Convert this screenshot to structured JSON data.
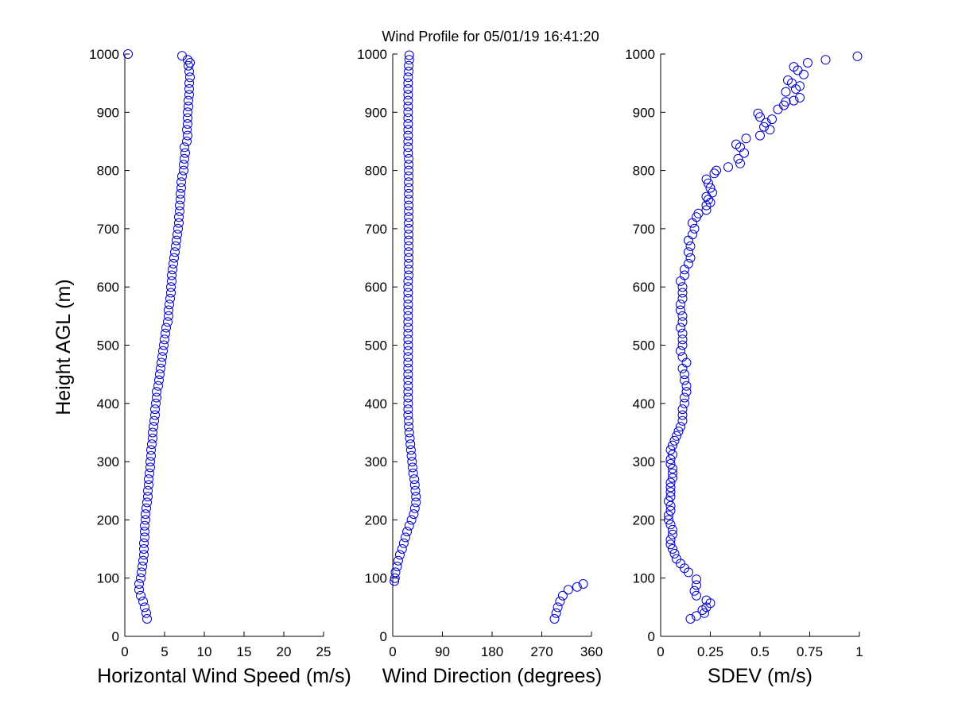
{
  "figure_title": "Wind Profile for  05/01/19 16:41:20",
  "marker_color": "#0000cc",
  "chart_data": [
    {
      "type": "scatter",
      "xlabel": "Horizontal Wind Speed (m/s)",
      "ylabel": "Height AGL (m)",
      "xlim": [
        0,
        25
      ],
      "ylim": [
        0,
        1000
      ],
      "xticks": [
        0,
        5,
        10,
        15,
        20,
        25
      ],
      "yticks": [
        0,
        100,
        200,
        300,
        400,
        500,
        600,
        700,
        800,
        900,
        1000
      ],
      "grid": false,
      "points": [
        [
          2.8,
          30
        ],
        [
          2.7,
          40
        ],
        [
          2.5,
          50
        ],
        [
          2.3,
          60
        ],
        [
          2.0,
          70
        ],
        [
          1.8,
          80
        ],
        [
          1.8,
          90
        ],
        [
          2.0,
          100
        ],
        [
          2.1,
          110
        ],
        [
          2.2,
          120
        ],
        [
          2.3,
          130
        ],
        [
          2.4,
          140
        ],
        [
          2.4,
          150
        ],
        [
          2.4,
          160
        ],
        [
          2.5,
          170
        ],
        [
          2.5,
          180
        ],
        [
          2.5,
          190
        ],
        [
          2.6,
          200
        ],
        [
          2.6,
          210
        ],
        [
          2.7,
          220
        ],
        [
          2.8,
          230
        ],
        [
          2.9,
          240
        ],
        [
          2.9,
          250
        ],
        [
          3.0,
          260
        ],
        [
          3.0,
          270
        ],
        [
          3.1,
          280
        ],
        [
          3.2,
          290
        ],
        [
          3.2,
          300
        ],
        [
          3.3,
          310
        ],
        [
          3.3,
          320
        ],
        [
          3.4,
          330
        ],
        [
          3.5,
          340
        ],
        [
          3.5,
          350
        ],
        [
          3.6,
          360
        ],
        [
          3.7,
          370
        ],
        [
          3.8,
          380
        ],
        [
          3.8,
          390
        ],
        [
          3.9,
          400
        ],
        [
          4.0,
          410
        ],
        [
          4.0,
          420
        ],
        [
          4.2,
          430
        ],
        [
          4.3,
          440
        ],
        [
          4.4,
          450
        ],
        [
          4.5,
          460
        ],
        [
          4.6,
          470
        ],
        [
          4.7,
          480
        ],
        [
          4.8,
          490
        ],
        [
          4.9,
          500
        ],
        [
          5.0,
          510
        ],
        [
          5.1,
          520
        ],
        [
          5.2,
          530
        ],
        [
          5.4,
          540
        ],
        [
          5.5,
          550
        ],
        [
          5.5,
          560
        ],
        [
          5.6,
          570
        ],
        [
          5.7,
          580
        ],
        [
          5.8,
          590
        ],
        [
          5.8,
          600
        ],
        [
          5.9,
          610
        ],
        [
          5.9,
          620
        ],
        [
          6.0,
          630
        ],
        [
          6.1,
          640
        ],
        [
          6.2,
          650
        ],
        [
          6.3,
          660
        ],
        [
          6.4,
          670
        ],
        [
          6.5,
          680
        ],
        [
          6.6,
          690
        ],
        [
          6.7,
          700
        ],
        [
          6.8,
          710
        ],
        [
          6.8,
          720
        ],
        [
          6.9,
          730
        ],
        [
          6.9,
          740
        ],
        [
          7.0,
          750
        ],
        [
          7.0,
          760
        ],
        [
          7.1,
          770
        ],
        [
          7.1,
          780
        ],
        [
          7.2,
          790
        ],
        [
          7.4,
          800
        ],
        [
          7.4,
          810
        ],
        [
          7.5,
          820
        ],
        [
          7.6,
          830
        ],
        [
          7.5,
          840
        ],
        [
          7.8,
          850
        ],
        [
          7.9,
          860
        ],
        [
          7.8,
          870
        ],
        [
          7.9,
          880
        ],
        [
          7.9,
          890
        ],
        [
          7.9,
          900
        ],
        [
          8.0,
          910
        ],
        [
          8.0,
          920
        ],
        [
          8.1,
          930
        ],
        [
          8.1,
          940
        ],
        [
          8.1,
          950
        ],
        [
          8.2,
          960
        ],
        [
          8.1,
          970
        ],
        [
          8.0,
          980
        ],
        [
          8.2,
          985
        ],
        [
          7.9,
          990
        ],
        [
          7.2,
          997
        ],
        [
          0.4,
          1000
        ]
      ]
    },
    {
      "type": "scatter",
      "xlabel": "Wind Direction (degrees)",
      "xlim": [
        0,
        360
      ],
      "ylim": [
        0,
        1000
      ],
      "xticks": [
        0,
        90,
        180,
        270,
        360
      ],
      "yticks": [
        0,
        100,
        200,
        300,
        400,
        500,
        600,
        700,
        800,
        900,
        1000
      ],
      "grid": false,
      "points": [
        [
          293,
          30
        ],
        [
          296,
          40
        ],
        [
          299,
          50
        ],
        [
          303,
          60
        ],
        [
          308,
          70
        ],
        [
          318,
          80
        ],
        [
          334,
          85
        ],
        [
          345,
          90
        ],
        [
          3,
          95
        ],
        [
          4,
          100
        ],
        [
          5,
          110
        ],
        [
          8,
          120
        ],
        [
          10,
          130
        ],
        [
          13,
          140
        ],
        [
          17,
          150
        ],
        [
          20,
          160
        ],
        [
          23,
          170
        ],
        [
          26,
          180
        ],
        [
          30,
          190
        ],
        [
          34,
          200
        ],
        [
          38,
          210
        ],
        [
          40,
          220
        ],
        [
          42,
          230
        ],
        [
          42,
          240
        ],
        [
          41,
          250
        ],
        [
          40,
          260
        ],
        [
          39,
          270
        ],
        [
          37,
          280
        ],
        [
          36,
          290
        ],
        [
          35,
          300
        ],
        [
          34,
          310
        ],
        [
          33,
          320
        ],
        [
          32,
          330
        ],
        [
          31,
          340
        ],
        [
          30,
          350
        ],
        [
          29,
          360
        ],
        [
          29,
          370
        ],
        [
          28,
          380
        ],
        [
          28,
          390
        ],
        [
          28,
          400
        ],
        [
          28,
          410
        ],
        [
          28,
          420
        ],
        [
          28,
          430
        ],
        [
          28,
          440
        ],
        [
          28,
          450
        ],
        [
          28,
          460
        ],
        [
          28,
          470
        ],
        [
          28,
          480
        ],
        [
          28,
          490
        ],
        [
          28,
          500
        ],
        [
          28,
          510
        ],
        [
          28,
          520
        ],
        [
          28,
          530
        ],
        [
          28,
          540
        ],
        [
          28,
          550
        ],
        [
          28,
          560
        ],
        [
          28,
          570
        ],
        [
          28,
          580
        ],
        [
          28,
          590
        ],
        [
          28,
          600
        ],
        [
          28,
          610
        ],
        [
          29,
          620
        ],
        [
          29,
          630
        ],
        [
          29,
          640
        ],
        [
          29,
          650
        ],
        [
          29,
          660
        ],
        [
          29,
          670
        ],
        [
          29,
          680
        ],
        [
          29,
          690
        ],
        [
          29,
          700
        ],
        [
          29,
          710
        ],
        [
          29,
          720
        ],
        [
          29,
          730
        ],
        [
          29,
          740
        ],
        [
          29,
          750
        ],
        [
          29,
          760
        ],
        [
          29,
          770
        ],
        [
          29,
          780
        ],
        [
          29,
          790
        ],
        [
          29,
          800
        ],
        [
          29,
          810
        ],
        [
          29,
          820
        ],
        [
          28,
          830
        ],
        [
          28,
          840
        ],
        [
          28,
          850
        ],
        [
          28,
          860
        ],
        [
          28,
          870
        ],
        [
          28,
          880
        ],
        [
          28,
          890
        ],
        [
          28,
          900
        ],
        [
          28,
          910
        ],
        [
          28,
          920
        ],
        [
          28,
          930
        ],
        [
          28,
          940
        ],
        [
          28,
          950
        ],
        [
          28,
          960
        ],
        [
          29,
          970
        ],
        [
          29,
          980
        ],
        [
          30,
          990
        ],
        [
          30,
          998
        ]
      ]
    },
    {
      "type": "scatter",
      "xlabel": "SDEV  (m/s)",
      "xlim": [
        0,
        1
      ],
      "ylim": [
        0,
        1000
      ],
      "xticks": [
        "0",
        "0.25",
        "0.5",
        "0.75",
        "1"
      ],
      "yticks": [
        0,
        100,
        200,
        300,
        400,
        500,
        600,
        700,
        800,
        900,
        1000
      ],
      "grid": false,
      "points": [
        [
          0.15,
          30
        ],
        [
          0.18,
          35
        ],
        [
          0.22,
          40
        ],
        [
          0.21,
          45
        ],
        [
          0.23,
          50
        ],
        [
          0.25,
          57
        ],
        [
          0.23,
          62
        ],
        [
          0.18,
          70
        ],
        [
          0.17,
          78
        ],
        [
          0.18,
          88
        ],
        [
          0.18,
          98
        ],
        [
          0.14,
          110
        ],
        [
          0.12,
          117
        ],
        [
          0.1,
          125
        ],
        [
          0.08,
          133
        ],
        [
          0.07,
          142
        ],
        [
          0.06,
          150
        ],
        [
          0.05,
          158
        ],
        [
          0.05,
          166
        ],
        [
          0.06,
          175
        ],
        [
          0.06,
          183
        ],
        [
          0.05,
          192
        ],
        [
          0.04,
          200
        ],
        [
          0.04,
          208
        ],
        [
          0.05,
          216
        ],
        [
          0.05,
          224
        ],
        [
          0.04,
          232
        ],
        [
          0.05,
          240
        ],
        [
          0.05,
          248
        ],
        [
          0.05,
          256
        ],
        [
          0.05,
          264
        ],
        [
          0.06,
          272
        ],
        [
          0.06,
          280
        ],
        [
          0.06,
          288
        ],
        [
          0.05,
          296
        ],
        [
          0.05,
          304
        ],
        [
          0.06,
          312
        ],
        [
          0.05,
          320
        ],
        [
          0.06,
          328
        ],
        [
          0.07,
          336
        ],
        [
          0.08,
          344
        ],
        [
          0.09,
          352
        ],
        [
          0.1,
          360
        ],
        [
          0.11,
          370
        ],
        [
          0.11,
          380
        ],
        [
          0.11,
          390
        ],
        [
          0.12,
          400
        ],
        [
          0.12,
          410
        ],
        [
          0.13,
          420
        ],
        [
          0.13,
          430
        ],
        [
          0.12,
          440
        ],
        [
          0.12,
          450
        ],
        [
          0.11,
          460
        ],
        [
          0.13,
          470
        ],
        [
          0.11,
          480
        ],
        [
          0.1,
          490
        ],
        [
          0.11,
          500
        ],
        [
          0.11,
          510
        ],
        [
          0.11,
          520
        ],
        [
          0.1,
          530
        ],
        [
          0.11,
          540
        ],
        [
          0.11,
          550
        ],
        [
          0.1,
          560
        ],
        [
          0.1,
          570
        ],
        [
          0.11,
          580
        ],
        [
          0.11,
          590
        ],
        [
          0.11,
          600
        ],
        [
          0.1,
          610
        ],
        [
          0.12,
          620
        ],
        [
          0.12,
          630
        ],
        [
          0.14,
          640
        ],
        [
          0.15,
          650
        ],
        [
          0.14,
          660
        ],
        [
          0.15,
          670
        ],
        [
          0.14,
          680
        ],
        [
          0.16,
          690
        ],
        [
          0.17,
          700
        ],
        [
          0.16,
          710
        ],
        [
          0.18,
          720
        ],
        [
          0.19,
          726
        ],
        [
          0.23,
          732
        ],
        [
          0.23,
          740
        ],
        [
          0.25,
          745
        ],
        [
          0.24,
          750
        ],
        [
          0.23,
          755
        ],
        [
          0.26,
          762
        ],
        [
          0.25,
          770
        ],
        [
          0.24,
          778
        ],
        [
          0.23,
          785
        ],
        [
          0.27,
          795
        ],
        [
          0.28,
          800
        ],
        [
          0.34,
          806
        ],
        [
          0.4,
          812
        ],
        [
          0.39,
          820
        ],
        [
          0.42,
          830
        ],
        [
          0.4,
          840
        ],
        [
          0.38,
          845
        ],
        [
          0.43,
          855
        ],
        [
          0.5,
          860
        ],
        [
          0.55,
          870
        ],
        [
          0.52,
          875
        ],
        [
          0.53,
          882
        ],
        [
          0.56,
          888
        ],
        [
          0.5,
          892
        ],
        [
          0.49,
          898
        ],
        [
          0.59,
          905
        ],
        [
          0.62,
          912
        ],
        [
          0.63,
          918
        ],
        [
          0.67,
          920
        ],
        [
          0.7,
          925
        ],
        [
          0.63,
          935
        ],
        [
          0.68,
          940
        ],
        [
          0.7,
          945
        ],
        [
          0.66,
          950
        ],
        [
          0.64,
          955
        ],
        [
          0.72,
          965
        ],
        [
          0.69,
          972
        ],
        [
          0.67,
          978
        ],
        [
          0.74,
          985
        ],
        [
          0.83,
          990
        ],
        [
          0.99,
          996
        ]
      ]
    }
  ]
}
